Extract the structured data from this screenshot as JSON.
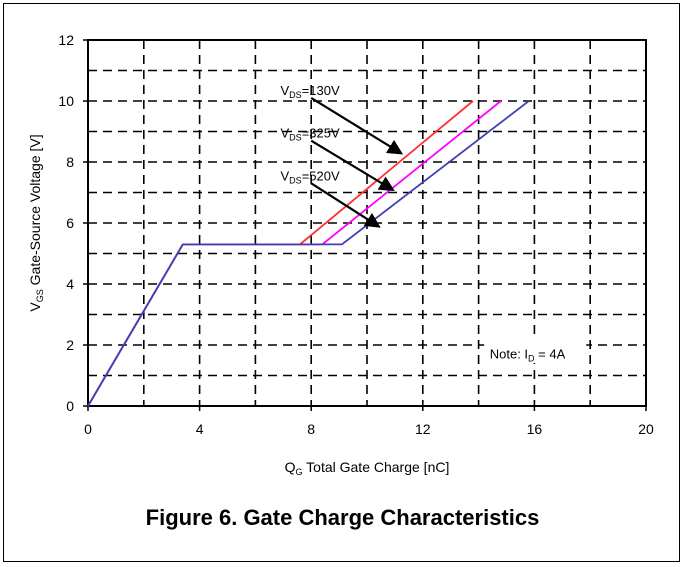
{
  "chart_data": {
    "type": "line",
    "title": "",
    "xlabel": "Q",
    "xlabel_sub": "G",
    "xlabel_rest": " Total Gate Charge [nC]",
    "ylabel": "V",
    "ylabel_sub": "GS",
    "ylabel_rest": " Gate-Source Voltage [V]",
    "xlim": [
      0,
      20
    ],
    "ylim": [
      0,
      12
    ],
    "xticks": [
      0,
      4,
      8,
      12,
      16,
      20
    ],
    "yticks": [
      0,
      2,
      4,
      6,
      8,
      10,
      12
    ],
    "grid": true,
    "grid_style": "dashed",
    "series": [
      {
        "name_main": "V",
        "name_sub": "DS",
        "name_value": "=130V",
        "color": "#ff3030",
        "x": [
          0,
          3.4,
          7.6,
          13.8
        ],
        "y": [
          0,
          5.3,
          5.3,
          10
        ]
      },
      {
        "name_main": "V",
        "name_sub": "DS",
        "name_value": "=325V",
        "color": "#ff00ff",
        "x": [
          0,
          3.4,
          8.4,
          14.8
        ],
        "y": [
          0,
          5.3,
          5.3,
          10
        ]
      },
      {
        "name_main": "V",
        "name_sub": "DS",
        "name_value": "=520V",
        "color": "#4040b0",
        "x": [
          0,
          3.4,
          9.1,
          15.8
        ],
        "y": [
          0,
          5.3,
          5.3,
          10
        ]
      }
    ],
    "note": {
      "prefix": "Note: I",
      "sub": "D",
      "value": " = 4A"
    }
  },
  "caption": "Figure 6. Gate Charge Characteristics"
}
